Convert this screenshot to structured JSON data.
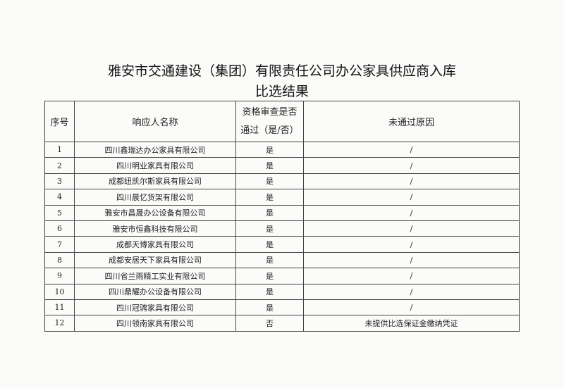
{
  "title": {
    "line1": "雅安市交通建设（集团）有限责任公司办公家具供应商入库",
    "line2": "比选结果"
  },
  "table": {
    "headers": [
      "序号",
      "响应人名称",
      "资格审查是否",
      "通过（是/否）",
      "未通过原因"
    ],
    "rows": [
      {
        "no": "1",
        "name": "四川鑫瑞达办公家具有限公司",
        "pass": "是",
        "reason": "/"
      },
      {
        "no": "2",
        "name": "四川明业家具有限公司",
        "pass": "是",
        "reason": "/"
      },
      {
        "no": "3",
        "name": "成都纽凯尔斯家具有限公司",
        "pass": "是",
        "reason": "/"
      },
      {
        "no": "4",
        "name": "四川晨忆货架有限公司",
        "pass": "是",
        "reason": "/"
      },
      {
        "no": "5",
        "name": "雅安市昌晟办公设备有限公司",
        "pass": "是",
        "reason": "/"
      },
      {
        "no": "6",
        "name": "雅安市恒鑫科技有限公司",
        "pass": "是",
        "reason": "/"
      },
      {
        "no": "7",
        "name": "成都天博家具有限公司",
        "pass": "是",
        "reason": "/"
      },
      {
        "no": "8",
        "name": "成都安居天下家具有限公司",
        "pass": "是",
        "reason": "/"
      },
      {
        "no": "9",
        "name": "四川省兰雨精工实业有限公司",
        "pass": "是",
        "reason": "/"
      },
      {
        "no": "10",
        "name": "四川鼎耀办公设备有限公司",
        "pass": "是",
        "reason": "/"
      },
      {
        "no": "11",
        "name": "四川冠骋家具有限公司",
        "pass": "是",
        "reason": "/"
      },
      {
        "no": "12",
        "name": "四川领南家具有限公司",
        "pass": "否",
        "reason": "未提供比选保证金缴纳凭证"
      }
    ]
  }
}
